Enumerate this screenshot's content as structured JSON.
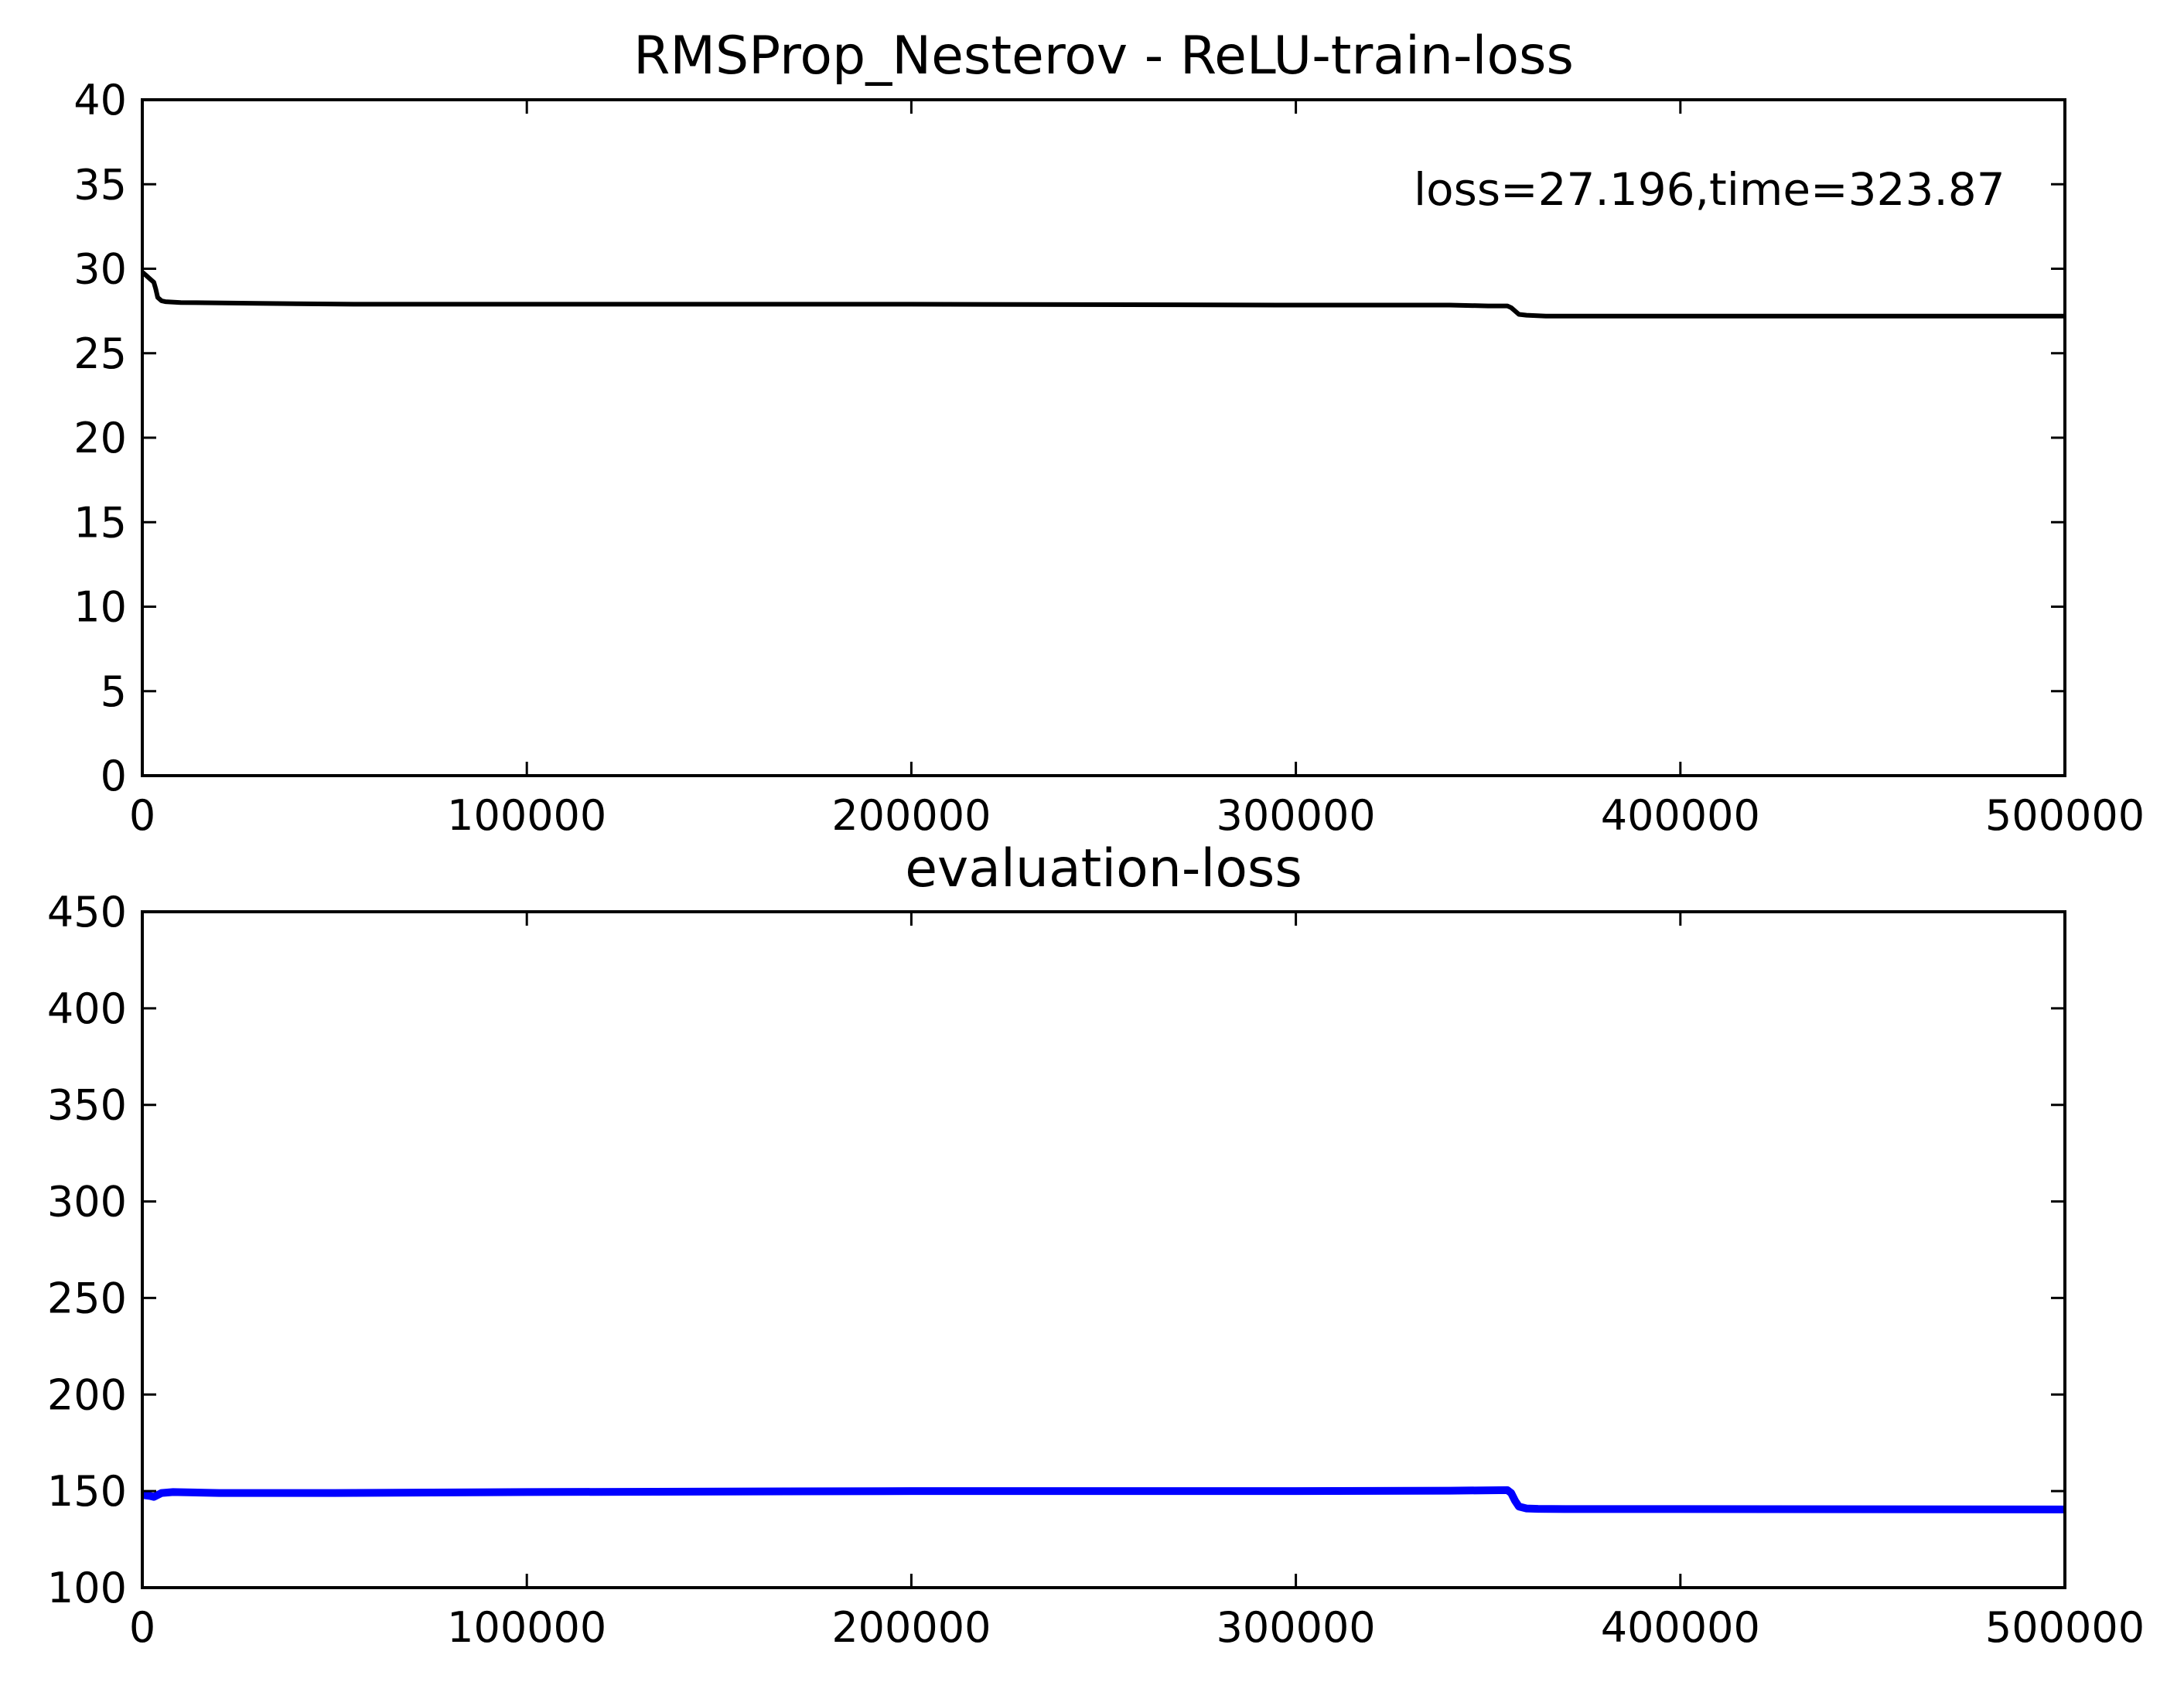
{
  "chart_data": [
    {
      "type": "line",
      "title": "RMSProp_Nesterov - ReLU-train-loss",
      "xlabel": "",
      "ylabel": "",
      "xlim": [
        0,
        500000
      ],
      "ylim": [
        0,
        40
      ],
      "xticks": [
        0,
        100000,
        200000,
        300000,
        400000,
        500000
      ],
      "yticks": [
        0,
        5,
        10,
        15,
        20,
        25,
        30,
        35,
        40
      ],
      "grid": false,
      "annotation": "loss=27.196,time=323.87",
      "series": [
        {
          "color": "#000000",
          "x": [
            0,
            1000,
            2000,
            3000,
            3500,
            4000,
            5000,
            6000,
            10000,
            30000,
            55000,
            100000,
            200000,
            300000,
            340000,
            350000,
            355000,
            356000,
            357000,
            358000,
            360000,
            365000,
            400000,
            450000,
            500000
          ],
          "y": [
            29.8,
            29.6,
            29.4,
            29.2,
            28.8,
            28.3,
            28.1,
            28.05,
            28.0,
            27.95,
            27.9,
            27.9,
            27.9,
            27.85,
            27.85,
            27.8,
            27.8,
            27.7,
            27.5,
            27.3,
            27.25,
            27.2,
            27.2,
            27.2,
            27.196
          ]
        }
      ]
    },
    {
      "type": "line",
      "title": "evaluation-loss",
      "xlabel": "",
      "ylabel": "",
      "xlim": [
        0,
        500000
      ],
      "ylim": [
        100,
        450
      ],
      "xticks": [
        0,
        100000,
        200000,
        300000,
        400000,
        500000
      ],
      "yticks": [
        100,
        150,
        200,
        250,
        300,
        350,
        400,
        450
      ],
      "grid": false,
      "series": [
        {
          "color": "#0000ff",
          "x": [
            0,
            2000,
            3000,
            4000,
            5000,
            8000,
            20000,
            50000,
            100000,
            200000,
            300000,
            340000,
            355000,
            356000,
            357000,
            358000,
            360000,
            363000,
            370000,
            400000,
            450000,
            500000
          ],
          "y": [
            148,
            147.5,
            147,
            148,
            149,
            149.5,
            149,
            149,
            149.5,
            150,
            150,
            150.2,
            150.5,
            149,
            145,
            142,
            141,
            140.8,
            140.7,
            140.7,
            140.6,
            140.5
          ]
        }
      ]
    }
  ]
}
